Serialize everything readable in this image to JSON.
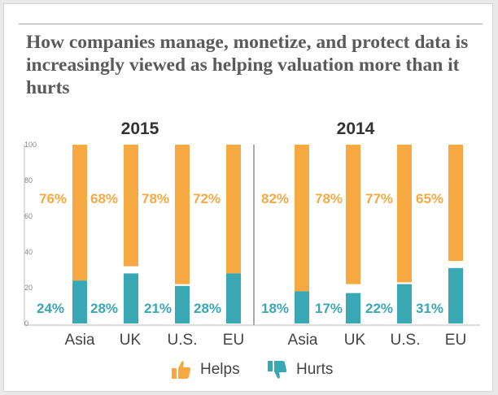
{
  "chart_data": {
    "type": "bar",
    "title": "How companies manage, monetize, and protect data is increasingly viewed as  helping valuation more than it hurts",
    "ylim": [
      0,
      100
    ],
    "yticks": [
      0,
      20,
      40,
      60,
      80,
      100
    ],
    "categories": [
      "Asia",
      "UK",
      "U.S.",
      "EU"
    ],
    "panels": [
      {
        "year": "2015",
        "series": [
          {
            "name": "Helps",
            "values": [
              76,
              68,
              78,
              72
            ],
            "labels": [
              "76%",
              "68%",
              "78%",
              "72%"
            ]
          },
          {
            "name": "Hurts",
            "values": [
              24,
              28,
              21,
              28
            ],
            "labels": [
              "24%",
              "28%",
              "21%",
              "28%"
            ]
          }
        ]
      },
      {
        "year": "2014",
        "series": [
          {
            "name": "Helps",
            "values": [
              82,
              78,
              77,
              65
            ],
            "labels": [
              "82%",
              "78%",
              "77%",
              "65%"
            ]
          },
          {
            "name": "Hurts",
            "values": [
              18,
              17,
              22,
              31
            ],
            "labels": [
              "18%",
              "17%",
              "22%",
              "31%"
            ]
          }
        ]
      }
    ],
    "colors": {
      "helps": "#F7A941",
      "hurts": "#3AA7B5"
    }
  },
  "legend": {
    "helps_label": "Helps",
    "helps_icon": "thumbs-up-icon",
    "hurts_label": "Hurts",
    "hurts_icon": "thumbs-down-icon"
  }
}
